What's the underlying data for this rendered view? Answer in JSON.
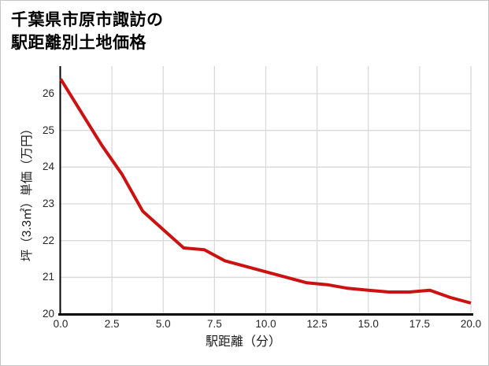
{
  "figure": {
    "title_line1": "千葉県市原市諏訪の",
    "title_line2": "駅距離別土地価格"
  },
  "chart_data": {
    "type": "line",
    "title": "千葉県市原市諏訪の駅距離別土地価格",
    "xlabel": "駅距離（分）",
    "ylabel": "坪（3.3㎡）単価（万円）",
    "x": [
      0,
      1,
      2,
      3,
      4,
      5,
      6,
      7,
      8,
      9,
      10,
      11,
      12,
      13,
      14,
      15,
      16,
      17,
      18,
      19,
      20
    ],
    "values": [
      26.4,
      25.5,
      24.6,
      23.8,
      22.8,
      22.3,
      21.8,
      21.75,
      21.45,
      21.3,
      21.15,
      21.0,
      20.85,
      20.8,
      20.7,
      20.65,
      20.6,
      20.6,
      20.65,
      20.45,
      20.3
    ],
    "series_name": "坪単価（万円）",
    "xlim": [
      0,
      20
    ],
    "ylim": [
      20,
      26.75
    ],
    "xticks": [
      0,
      2.5,
      5,
      7.5,
      10,
      12.5,
      15,
      17.5,
      20
    ],
    "xtick_labels": [
      "0.0",
      "2.5",
      "5.0",
      "7.5",
      "10.0",
      "12.5",
      "15.0",
      "17.5",
      "20.0"
    ],
    "yticks": [
      20,
      21,
      22,
      23,
      24,
      25,
      26
    ],
    "ytick_labels": [
      "20",
      "21",
      "22",
      "23",
      "24",
      "25",
      "26"
    ],
    "grid": true,
    "legend": false,
    "line_color": "#cc1111",
    "line_width": 4,
    "grid_color": "#d9d9d9",
    "axis_color": "#000000",
    "tick_color": "#262626",
    "background": "#ffffff",
    "border_color": "#c6c6c6"
  }
}
